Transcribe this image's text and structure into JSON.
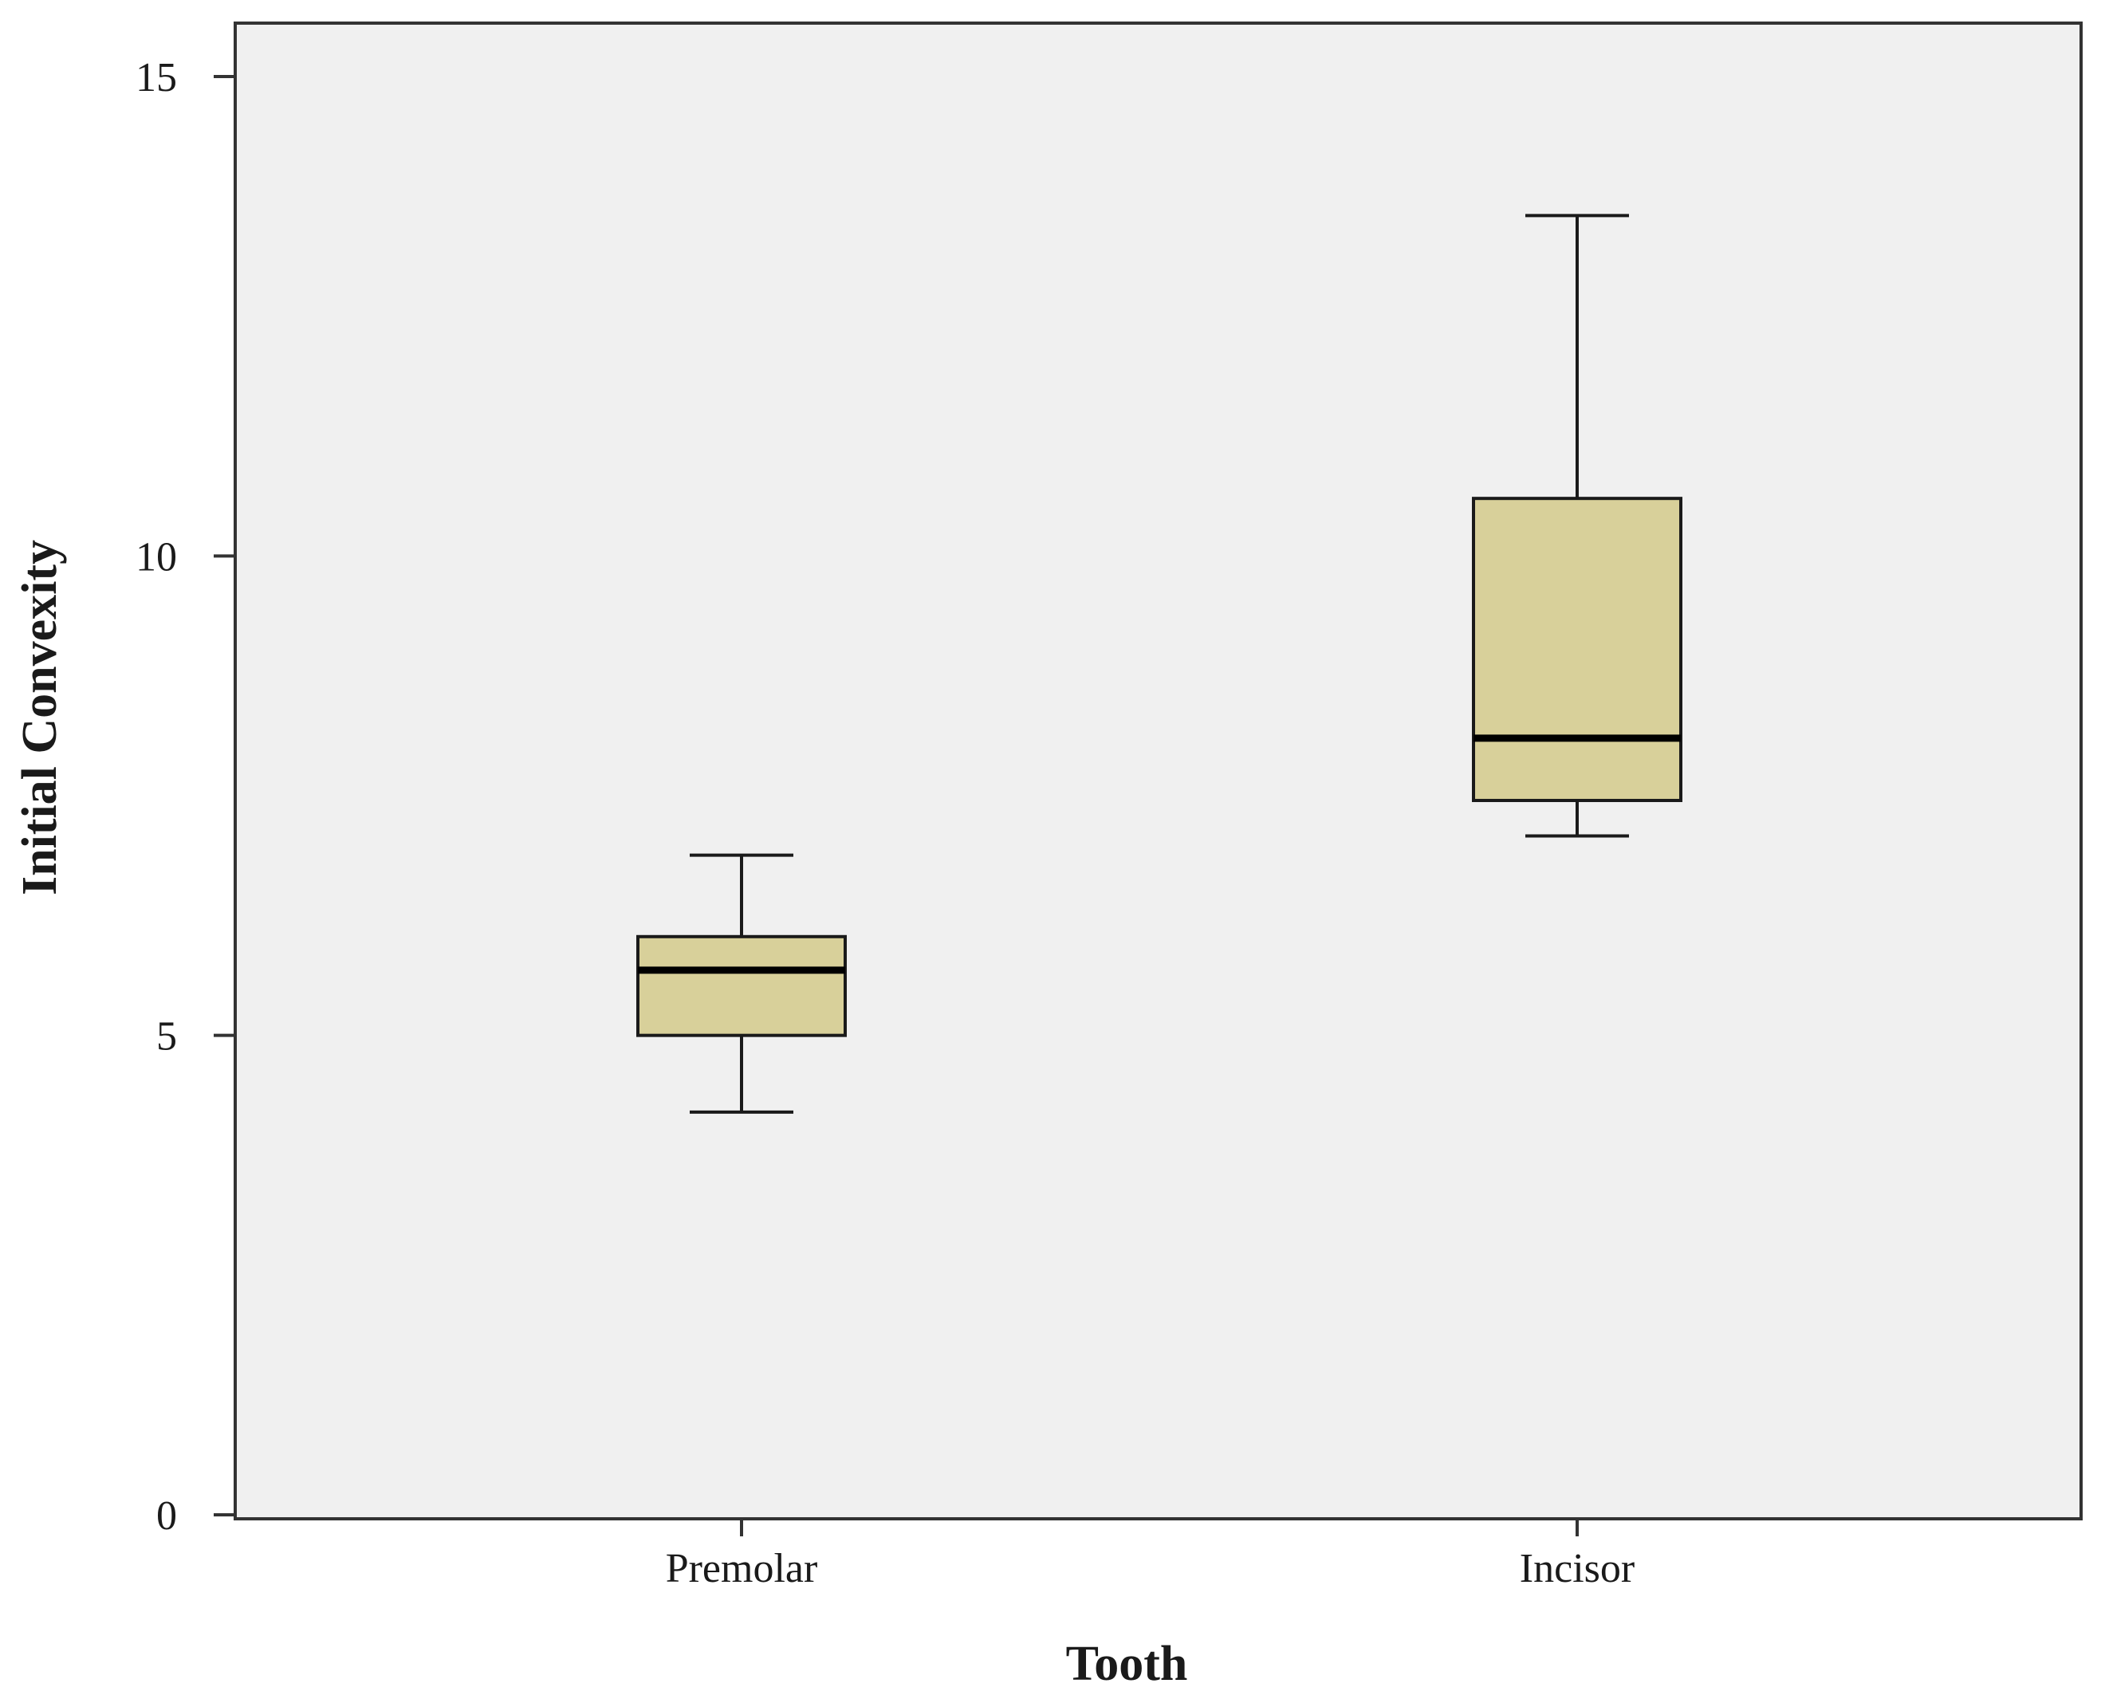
{
  "chart_data": {
    "type": "boxplot",
    "title": "",
    "xlabel": "Tooth",
    "ylabel": "Initial Convexity",
    "ylim": [
      0,
      15.5
    ],
    "yticks": [
      0,
      5,
      10,
      15
    ],
    "grid": false,
    "legend": "none",
    "categories": [
      "Premolar",
      "Incisor"
    ],
    "boxes": [
      {
        "category": "Premolar",
        "min": 4.2,
        "q1": 5.0,
        "median": 5.68,
        "q3": 6.03,
        "max": 6.88
      },
      {
        "category": "Incisor",
        "min": 7.08,
        "q1": 7.45,
        "median": 8.1,
        "q3": 10.6,
        "max": 13.55
      }
    ],
    "colors": {
      "box_fill": "#d8d09a",
      "plot_background": "#f0f0f0",
      "stroke": "#1a1a1a"
    }
  }
}
